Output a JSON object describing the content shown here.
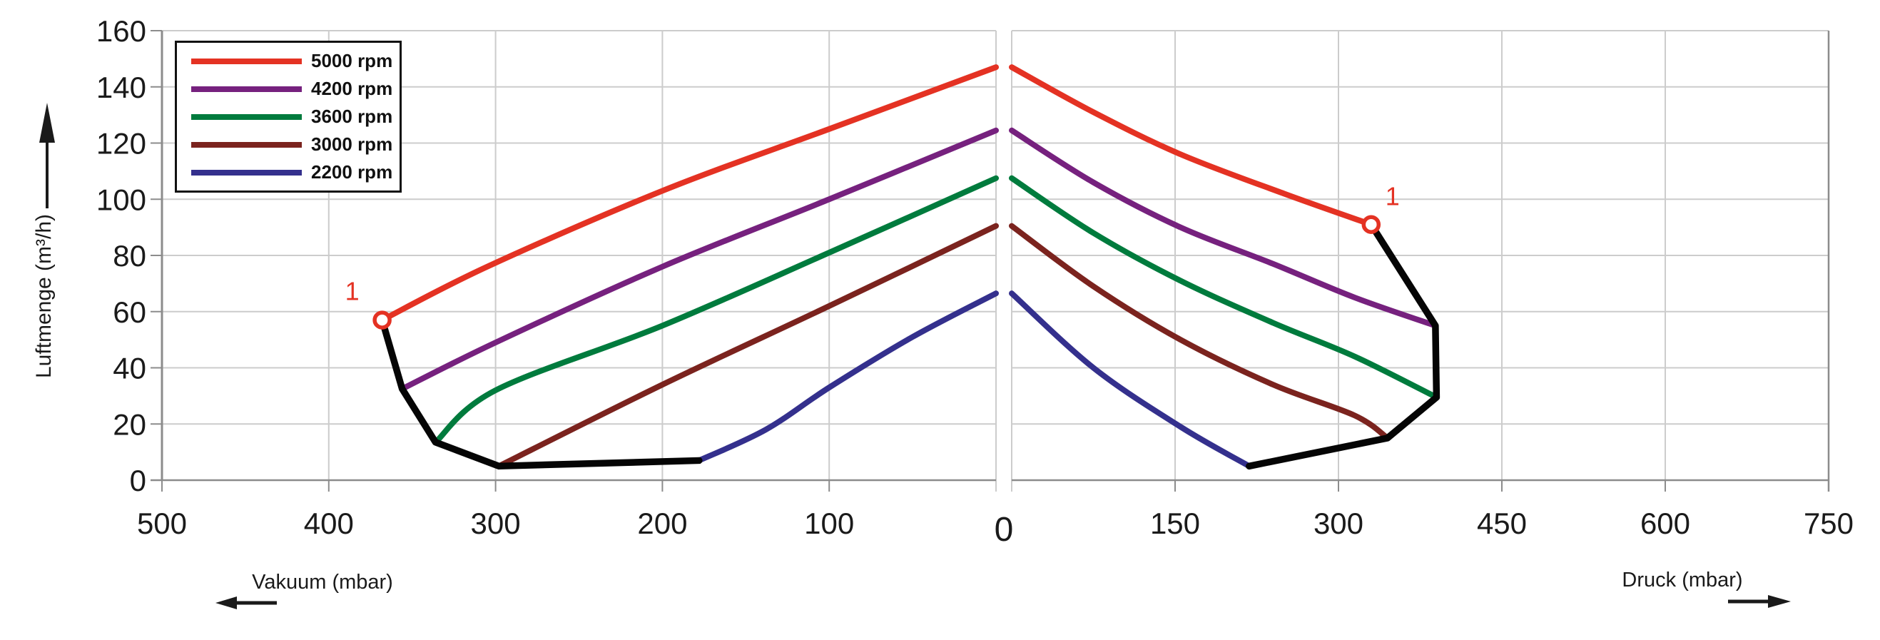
{
  "chart_data": {
    "type": "line",
    "ylabel": "Luftmenge (m³/h)",
    "xlabel_left": "Vakuum (mbar)",
    "xlabel_right": "Druck (mbar)",
    "ylim": [
      0,
      160
    ],
    "xlim_left": [
      0,
      500
    ],
    "xlim_right": [
      0,
      750
    ],
    "y_ticks": [
      160,
      140,
      120,
      100,
      80,
      60,
      40,
      20,
      0
    ],
    "x_ticks_left": [
      500,
      400,
      300,
      200,
      100
    ],
    "x_ticks_right": [
      150,
      300,
      450,
      600,
      750
    ],
    "center_tick_label": "0",
    "grid": true,
    "legend_position": "top-left",
    "style": {
      "grid_color": "#cccccc",
      "axis_color": "#8c8c8c",
      "text_color": "#1a1a1a",
      "background": "#ffffff",
      "envelope_color": "#050505"
    },
    "series": [
      {
        "name": "5000 rpm",
        "color": "#e43223",
        "vacuum": [
          [
            0,
            147
          ],
          [
            100,
            125
          ],
          [
            200,
            103
          ],
          [
            305,
            76
          ],
          [
            368,
            57
          ]
        ],
        "druck": [
          [
            0,
            147
          ],
          [
            75,
            131
          ],
          [
            155,
            116
          ],
          [
            250,
            102
          ],
          [
            330,
            91
          ]
        ]
      },
      {
        "name": "4200 rpm",
        "color": "#76217e",
        "vacuum": [
          [
            0,
            124.5
          ],
          [
            100,
            100
          ],
          [
            200,
            76
          ],
          [
            300,
            49
          ],
          [
            356,
            32.5
          ]
        ],
        "druck": [
          [
            0,
            124.5
          ],
          [
            75,
            106
          ],
          [
            155,
            90
          ],
          [
            240,
            77
          ],
          [
            315,
            65
          ],
          [
            389,
            55
          ]
        ]
      },
      {
        "name": "3600 rpm",
        "color": "#007b3d",
        "vacuum": [
          [
            0,
            107.5
          ],
          [
            100,
            81
          ],
          [
            200,
            55
          ],
          [
            300,
            32
          ],
          [
            336,
            13.5
          ]
        ],
        "druck": [
          [
            0,
            107.5
          ],
          [
            75,
            88
          ],
          [
            155,
            71
          ],
          [
            240,
            56
          ],
          [
            315,
            44
          ],
          [
            390,
            29.5
          ]
        ]
      },
      {
        "name": "3000 rpm",
        "color": "#7b231e",
        "vacuum": [
          [
            0,
            90.5
          ],
          [
            100,
            62
          ],
          [
            200,
            34
          ],
          [
            298,
            5
          ]
        ],
        "druck": [
          [
            0,
            90.5
          ],
          [
            75,
            69
          ],
          [
            155,
            50
          ],
          [
            240,
            34
          ],
          [
            315,
            23
          ],
          [
            345,
            15
          ]
        ]
      },
      {
        "name": "2200 rpm",
        "color": "#34308d",
        "vacuum": [
          [
            0,
            66.5
          ],
          [
            50,
            51
          ],
          [
            100,
            33
          ],
          [
            138,
            18
          ],
          [
            178,
            7
          ]
        ],
        "druck": [
          [
            0,
            66.5
          ],
          [
            75,
            40
          ],
          [
            155,
            19
          ],
          [
            218,
            5
          ]
        ]
      }
    ],
    "envelope": {
      "vacuum": [
        [
          368,
          57
        ],
        [
          356,
          32.5
        ],
        [
          336,
          13.5
        ],
        [
          298,
          5
        ],
        [
          178,
          7
        ]
      ],
      "druck": [
        [
          330,
          91
        ],
        [
          389,
          55
        ],
        [
          390,
          29.5
        ],
        [
          345,
          15
        ],
        [
          218,
          5
        ]
      ]
    },
    "markers": [
      {
        "label": "1",
        "side": "vacuum",
        "x": 368,
        "y": 57,
        "color": "#e43223"
      },
      {
        "label": "1",
        "side": "druck",
        "x": 330,
        "y": 91,
        "color": "#e43223"
      }
    ]
  }
}
